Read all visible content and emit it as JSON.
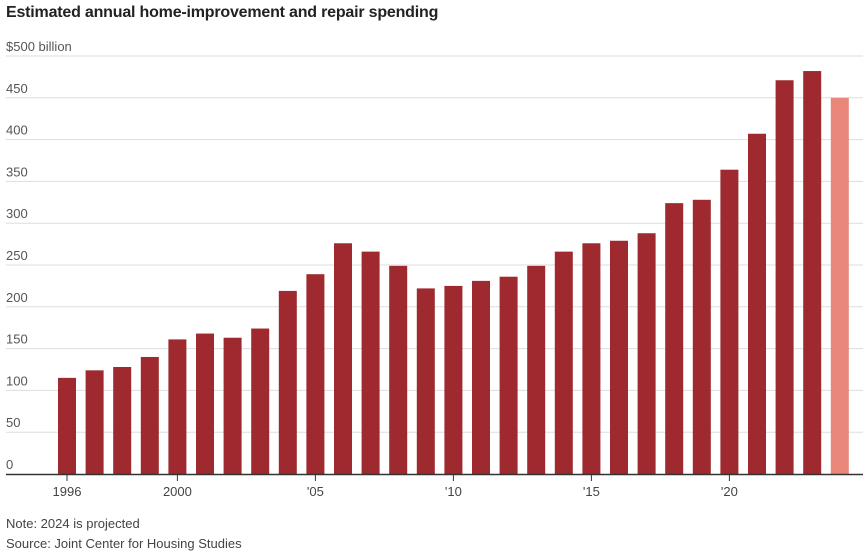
{
  "title": "Estimated annual home-improvement and repair spending",
  "note": "Note: 2024 is projected",
  "source": "Source: Joint Center for Housing Studies",
  "colors": {
    "actual": "#9e2a2f",
    "projected": "#e8877a",
    "grid": "#dddddd",
    "axis": "#333333"
  },
  "chart_data": {
    "type": "bar",
    "title": "Estimated annual home-improvement and repair spending",
    "xlabel": "",
    "ylabel": "",
    "ylim": [
      0,
      500
    ],
    "yticks": [
      0,
      50,
      100,
      150,
      200,
      250,
      300,
      350,
      400,
      450,
      500
    ],
    "ytick_labels": [
      "0",
      "50",
      "100",
      "150",
      "200",
      "250",
      "300",
      "350",
      "400",
      "450",
      "$500 billion"
    ],
    "xtick_labels": [
      {
        "year": 1996,
        "label": "1996"
      },
      {
        "year": 2000,
        "label": "2000"
      },
      {
        "year": 2005,
        "label": "'05"
      },
      {
        "year": 2010,
        "label": "'10"
      },
      {
        "year": 2015,
        "label": "'15"
      },
      {
        "year": 2020,
        "label": "'20"
      }
    ],
    "grid": true,
    "categories": [
      1996,
      1997,
      1998,
      1999,
      2000,
      2001,
      2002,
      2003,
      2004,
      2005,
      2006,
      2007,
      2008,
      2009,
      2010,
      2011,
      2012,
      2013,
      2014,
      2015,
      2016,
      2017,
      2018,
      2019,
      2020,
      2021,
      2022,
      2023,
      2024
    ],
    "values": [
      115,
      124,
      128,
      140,
      161,
      168,
      163,
      174,
      219,
      239,
      276,
      266,
      249,
      222,
      225,
      231,
      236,
      249,
      266,
      276,
      279,
      288,
      324,
      328,
      364,
      407,
      471,
      482,
      450
    ],
    "projected": [
      false,
      false,
      false,
      false,
      false,
      false,
      false,
      false,
      false,
      false,
      false,
      false,
      false,
      false,
      false,
      false,
      false,
      false,
      false,
      false,
      false,
      false,
      false,
      false,
      false,
      false,
      false,
      false,
      true
    ]
  }
}
